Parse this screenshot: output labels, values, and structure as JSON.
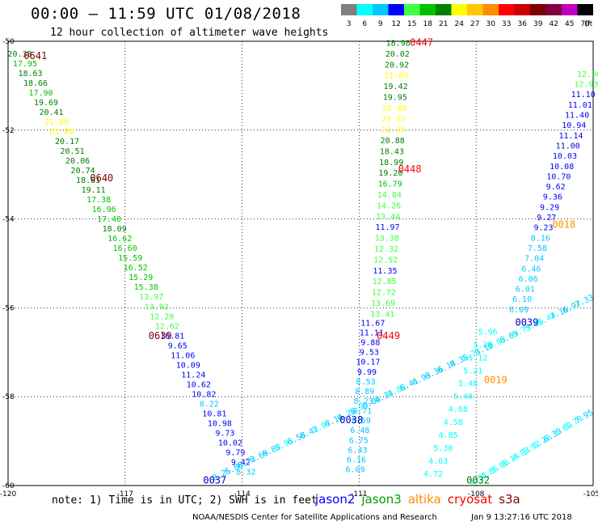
{
  "title": "00:00 – 11:59 UTC 01/08/2018",
  "subtitle": "12 hour collection of altimeter wave heights",
  "colorbar": {
    "unit": "(ft)",
    "bins": [
      {
        "label": "3",
        "color": "#808080"
      },
      {
        "label": "6",
        "color": "#00ffff"
      },
      {
        "label": "9",
        "color": "#00c8ff"
      },
      {
        "label": "12",
        "color": "#0000ff"
      },
      {
        "label": "15",
        "color": "#40ff40"
      },
      {
        "label": "18",
        "color": "#00c000"
      },
      {
        "label": "21",
        "color": "#008000"
      },
      {
        "label": "24",
        "color": "#ffff00"
      },
      {
        "label": "27",
        "color": "#ffc800"
      },
      {
        "label": "30",
        "color": "#ff8c00"
      },
      {
        "label": "33",
        "color": "#ff0000"
      },
      {
        "label": "36",
        "color": "#c80000"
      },
      {
        "label": "39",
        "color": "#800000"
      },
      {
        "label": "42",
        "color": "#800040"
      },
      {
        "label": "45",
        "color": "#c000c0"
      },
      {
        "label": "70",
        "color": "#000000"
      }
    ]
  },
  "axes": {
    "lat_labels": [
      "-50",
      "-52",
      "-54",
      "-56",
      "-58",
      "-60"
    ],
    "lon_labels": [
      "-120",
      "-117",
      "-114",
      "-111",
      "-108",
      "-105"
    ],
    "lat_range": [
      -60,
      -50
    ],
    "lon_range": [
      -120,
      -105
    ]
  },
  "tracks": [
    {
      "id": "a",
      "start": [
        -119.7,
        -50.35
      ],
      "end": [
        -113.9,
        -59.75
      ],
      "values": [
        "20.38",
        "17.95",
        "18.63",
        "18.66",
        "17.90",
        "19.69",
        "20.41",
        "21.80",
        "21.80",
        "20.17",
        "20.51",
        "20.06",
        "20.74",
        "18.81",
        "19.11",
        "17.38",
        "16.96",
        "17.40",
        "18.09",
        "16.62",
        "16.60",
        "15.59",
        "16.52",
        "15.29",
        "15.38",
        "13.97",
        "13.92",
        "12.29",
        "12.62",
        "10.81",
        "9.65",
        "11.06",
        "10.09",
        "11.24",
        "10.62",
        "10.82",
        "8.22",
        "10.81",
        "10.98",
        "9.73",
        "10.02",
        "9.79",
        "9.42",
        "8.32"
      ]
    },
    {
      "id": "b",
      "start": [
        -110.0,
        -50.1
      ],
      "end": [
        -110.4,
        -56.2
      ],
      "values": [
        "18.98",
        "20.02",
        "20.92",
        "21.65",
        "19.42",
        "19.95",
        "22.40",
        "21.67",
        "21.39",
        "20.88",
        "18.43",
        "18.99",
        "19.20",
        "16.79",
        "14.84",
        "14.26",
        "13.44",
        "11.97",
        "13.38",
        "12.32",
        "12.52",
        "11.35",
        "12.85",
        "12.72",
        "13.69",
        "13.41"
      ]
    },
    {
      "id": "c",
      "start": [
        -110.65,
        -56.4
      ],
      "end": [
        -111.1,
        -59.7
      ],
      "values": [
        "11.67",
        "11.11",
        "9.88",
        "9.53",
        "10.17",
        "9.99",
        "8.53",
        "8.89",
        "8.23",
        "8.71",
        "8.59",
        "6.48",
        "6.75",
        "6.43",
        "6.16",
        "6.09"
      ]
    },
    {
      "id": "d",
      "start": [
        -105.1,
        -50.8
      ],
      "end": [
        -106.9,
        -56.1
      ],
      "values": [
        "12.96",
        "12.93",
        "11.10",
        "11.01",
        "11.40",
        "10.94",
        "11.14",
        "11.00",
        "10.03",
        "10.08",
        "10.70",
        "9.62",
        "9.36",
        "9.29",
        "9.27",
        "9.23",
        "8.16",
        "7.58",
        "7.04",
        "6.46",
        "6.06",
        "6.01",
        "6.10",
        "6.09"
      ]
    },
    {
      "id": "e",
      "start": [
        -107.7,
        -56.6
      ],
      "end": [
        -109.1,
        -59.8
      ],
      "values": [
        "5.96",
        "5.28",
        "5.12",
        "5.21",
        "5.48",
        "5.48",
        "4.68",
        "4.58",
        "4.85",
        "5.30",
        "4.63",
        "4.72"
      ]
    },
    {
      "id": "f",
      "start": [
        -114.5,
        -59.8
      ],
      "end": [
        -105.2,
        -55.9
      ],
      "values": [
        "8.25",
        "6.88",
        "6.72",
        "6.69",
        "6.88",
        "5.93",
        "6.58",
        "6.42",
        "5.97",
        "6.14",
        "6.28",
        "5.95",
        "6.04",
        "6.34",
        "5.88",
        "6.41",
        "6.93",
        "6.36",
        "6.14",
        "6.36",
        "5.71",
        "6.10",
        "5.83",
        "6.09",
        "5.75",
        "5.66",
        "5.44",
        "7.16",
        "6.97",
        "7.33"
      ]
    },
    {
      "id": "g",
      "start": [
        -107.9,
        -59.9
      ],
      "end": [
        -105.2,
        -58.5
      ],
      "values": [
        "4.51",
        "4.86",
        "5.08",
        "5.14",
        "4.83",
        "5.92",
        "5.20",
        "6.39",
        "5.69",
        "5.79",
        "7.95"
      ]
    }
  ],
  "passes": [
    {
      "id": "0641",
      "pos": [
        -119.3,
        -50.4
      ],
      "color": "#800000"
    },
    {
      "id": "0640",
      "pos": [
        -117.6,
        -53.15
      ],
      "color": "#800000"
    },
    {
      "id": "0639",
      "pos": [
        -116.1,
        -56.7
      ],
      "color": "#800000"
    },
    {
      "id": "0037",
      "pos": [
        -114.7,
        -59.95
      ],
      "color": "#0000c8"
    },
    {
      "id": "0447",
      "pos": [
        -109.4,
        -50.1
      ],
      "color": "#ff0000"
    },
    {
      "id": "0448",
      "pos": [
        -109.7,
        -52.95
      ],
      "color": "#ff0000"
    },
    {
      "id": "0449",
      "pos": [
        -110.25,
        -56.7
      ],
      "color": "#ff0000"
    },
    {
      "id": "0038",
      "pos": [
        -111.2,
        -58.6
      ],
      "color": "#0000c8"
    },
    {
      "id": "0039",
      "pos": [
        -106.7,
        -56.4
      ],
      "color": "#0000c8"
    },
    {
      "id": "0018",
      "pos": [
        -105.75,
        -54.2
      ],
      "color": "#ff8c00"
    },
    {
      "id": "0019",
      "pos": [
        -107.5,
        -57.7
      ],
      "color": "#ff8c00"
    },
    {
      "id": "0032",
      "pos": [
        -107.95,
        -59.95
      ],
      "color": "#008000"
    }
  ],
  "note": "note:  1) Time is in UTC;  2) SWH is in feet",
  "satellites": [
    {
      "name": "jason2",
      "color": "#0000ff"
    },
    {
      "name": "jason3",
      "color": "#00a000"
    },
    {
      "name": "altika",
      "color": "#ff8c00"
    },
    {
      "name": "cryosat",
      "color": "#ff0000"
    },
    {
      "name": "s3a",
      "color": "#800000"
    }
  ],
  "footer": "NOAA/NESDIS Center for Satellite Applications and Research",
  "footer_time": "Jan  9 13:27:16 UTC 2018"
}
